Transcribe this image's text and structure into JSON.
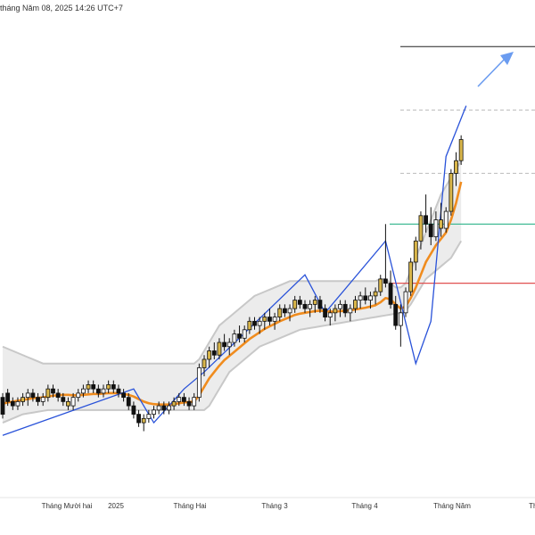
{
  "header": {
    "timestamp": "tháng Năm 08, 2025 14:26 UTC+7"
  },
  "colors": {
    "candle_up": "#ffffff",
    "candle_down": "#111111",
    "candle_up_outline": "#111111",
    "highlight_candle": "#d9b64a",
    "ma_line": "#f08c1e",
    "zigzag": "#2952d9",
    "band_fill": "#ececec",
    "band_edge": "#c8c8c8",
    "resistance_line": "#222222",
    "dashed_lines": "#bbbbbb",
    "green_line": "#2db38a",
    "red_line": "#e05050",
    "arrow": "#6b9cf0"
  },
  "chart_data": {
    "type": "candlestick",
    "title": "",
    "x_labels": [
      "Tháng Mười hai",
      "2025",
      "Tháng Hai",
      "Tháng 3",
      "Tháng 4",
      "Tháng Năm",
      "Thá"
    ],
    "x_label_positions": [
      0.075,
      0.13,
      0.213,
      0.308,
      0.409,
      0.507,
      0.6
    ],
    "y_range": [
      0,
      100
    ],
    "candles": [
      [
        14,
        15,
        9,
        10
      ],
      [
        15,
        16,
        12,
        13
      ],
      [
        13,
        14,
        11,
        12
      ],
      [
        12,
        14,
        11,
        13
      ],
      [
        13,
        15,
        12,
        14
      ],
      [
        14,
        16,
        12,
        15
      ],
      [
        15,
        16,
        13,
        14
      ],
      [
        14,
        15,
        12,
        13
      ],
      [
        13,
        15,
        12,
        14
      ],
      [
        14,
        17,
        13,
        16
      ],
      [
        16,
        17,
        14,
        15
      ],
      [
        15,
        16,
        13,
        14
      ],
      [
        14,
        15,
        12,
        13
      ],
      [
        13,
        14,
        11,
        12
      ],
      [
        12,
        15,
        11,
        14
      ],
      [
        14,
        16,
        13,
        15
      ],
      [
        15,
        17,
        14,
        16
      ],
      [
        16,
        18,
        15,
        17
      ],
      [
        17,
        18,
        15,
        16
      ],
      [
        16,
        17,
        14,
        15
      ],
      [
        15,
        17,
        14,
        16
      ],
      [
        16,
        18,
        15,
        17
      ],
      [
        17,
        18,
        15,
        16
      ],
      [
        16,
        17,
        14,
        15
      ],
      [
        15,
        16,
        13,
        14
      ],
      [
        14,
        15,
        11,
        12
      ],
      [
        12,
        13,
        9,
        10
      ],
      [
        10,
        11,
        7,
        8
      ],
      [
        8,
        10,
        6,
        9
      ],
      [
        9,
        11,
        8,
        10
      ],
      [
        10,
        12,
        9,
        11
      ],
      [
        11,
        13,
        10,
        12
      ],
      [
        12,
        13,
        10,
        11
      ],
      [
        11,
        13,
        10,
        12
      ],
      [
        12,
        14,
        11,
        13
      ],
      [
        13,
        15,
        12,
        14
      ],
      [
        14,
        15,
        12,
        13
      ],
      [
        13,
        14,
        11,
        12
      ],
      [
        12,
        15,
        11,
        14
      ],
      [
        14,
        22,
        13,
        21
      ],
      [
        21,
        24,
        19,
        23
      ],
      [
        23,
        26,
        21,
        25
      ],
      [
        25,
        27,
        23,
        24
      ],
      [
        24,
        28,
        23,
        27
      ],
      [
        27,
        29,
        25,
        26
      ],
      [
        26,
        28,
        24,
        27
      ],
      [
        27,
        30,
        26,
        29
      ],
      [
        29,
        31,
        27,
        28
      ],
      [
        28,
        31,
        27,
        30
      ],
      [
        30,
        33,
        29,
        32
      ],
      [
        32,
        33,
        30,
        31
      ],
      [
        31,
        33,
        29,
        32
      ],
      [
        32,
        34,
        30,
        33
      ],
      [
        33,
        35,
        31,
        32
      ],
      [
        32,
        34,
        30,
        33
      ],
      [
        33,
        36,
        32,
        35
      ],
      [
        35,
        36,
        33,
        34
      ],
      [
        34,
        36,
        32,
        35
      ],
      [
        35,
        38,
        34,
        37
      ],
      [
        37,
        38,
        35,
        36
      ],
      [
        36,
        37,
        34,
        35
      ],
      [
        35,
        37,
        33,
        36
      ],
      [
        36,
        38,
        34,
        37
      ],
      [
        37,
        38,
        34,
        35
      ],
      [
        35,
        36,
        32,
        33
      ],
      [
        33,
        35,
        31,
        34
      ],
      [
        34,
        36,
        32,
        35
      ],
      [
        35,
        37,
        33,
        36
      ],
      [
        36,
        37,
        33,
        34
      ],
      [
        34,
        36,
        32,
        35
      ],
      [
        35,
        38,
        34,
        37
      ],
      [
        37,
        39,
        35,
        38
      ],
      [
        38,
        40,
        36,
        37
      ],
      [
        37,
        39,
        35,
        38
      ],
      [
        38,
        40,
        36,
        39
      ],
      [
        39,
        43,
        38,
        42
      ],
      [
        42,
        55,
        40,
        41
      ],
      [
        41,
        44,
        35,
        36
      ],
      [
        36,
        38,
        30,
        31
      ],
      [
        31,
        36,
        26,
        34
      ],
      [
        34,
        40,
        33,
        39
      ],
      [
        39,
        47,
        38,
        46
      ],
      [
        46,
        52,
        44,
        51
      ],
      [
        51,
        58,
        49,
        57
      ],
      [
        57,
        62,
        53,
        55
      ],
      [
        55,
        59,
        50,
        52
      ],
      [
        52,
        58,
        51,
        56
      ],
      [
        56,
        60,
        52,
        54
      ],
      [
        54,
        59,
        53,
        58
      ],
      [
        58,
        68,
        57,
        67
      ],
      [
        67,
        72,
        64,
        70
      ],
      [
        70,
        76,
        69,
        75
      ]
    ],
    "highlight_candles": [
      4,
      9,
      13,
      17,
      21,
      28,
      34,
      40,
      41,
      43,
      49,
      52,
      55,
      58,
      62,
      66,
      70,
      74,
      75,
      81,
      82,
      83,
      87,
      89,
      90,
      91
    ],
    "ma_values": [
      12.5,
      12.8,
      13.0,
      13.2,
      13.4,
      13.6,
      13.8,
      13.9,
      14.0,
      14.2,
      14.4,
      14.5,
      14.6,
      14.6,
      14.5,
      14.5,
      14.6,
      14.7,
      14.8,
      14.8,
      14.9,
      15.0,
      15.0,
      15.0,
      14.8,
      14.6,
      14.2,
      13.6,
      13.0,
      12.6,
      12.4,
      12.3,
      12.3,
      12.3,
      12.4,
      12.6,
      12.8,
      12.9,
      13.0,
      14.5,
      16.5,
      18.5,
      20.0,
      21.5,
      22.8,
      23.8,
      24.8,
      25.8,
      26.8,
      27.8,
      28.6,
      29.4,
      30.2,
      30.8,
      31.4,
      32.0,
      32.5,
      33.0,
      33.5,
      33.8,
      34.0,
      34.2,
      34.4,
      34.5,
      34.4,
      34.3,
      34.3,
      34.4,
      34.5,
      34.6,
      34.8,
      35.0,
      35.2,
      35.5,
      35.8,
      36.5,
      37.5,
      37.2,
      36.0,
      35.0,
      35.5,
      37.5,
      40.0,
      43.0,
      46.0,
      48.0,
      50.0,
      51.5,
      53.0,
      56.0,
      60.0,
      65.0
    ],
    "band_upper": [
      26,
      25.5,
      25,
      24.5,
      24,
      23.5,
      23,
      22.5,
      22,
      22,
      22,
      22,
      22,
      22,
      22,
      22,
      22,
      22,
      22,
      22,
      22,
      22,
      22,
      22,
      22,
      22,
      22,
      22,
      22,
      22,
      22,
      22,
      22,
      22,
      22,
      22,
      22,
      22,
      22,
      23,
      25,
      27,
      29,
      31,
      32,
      33,
      34,
      35,
      36,
      37,
      38,
      38.5,
      39,
      39.5,
      40,
      40.5,
      41,
      41.5,
      41.5,
      41.5,
      41.5,
      41.5,
      41.5,
      41.5,
      41.5,
      41.5,
      41.5,
      41.5,
      41.5,
      41.5,
      41.5,
      41.5,
      41.5,
      41.5,
      41.5,
      42,
      42,
      41,
      40,
      40,
      41,
      44,
      47,
      50,
      53,
      56,
      59,
      62,
      64,
      66,
      68,
      70
    ],
    "band_lower": [
      8,
      8.5,
      9,
      9.5,
      10,
      10.2,
      10.4,
      10.6,
      10.8,
      11,
      11,
      11,
      11,
      11,
      11,
      11,
      11,
      11,
      11,
      11,
      11,
      11,
      11,
      11,
      11,
      11,
      11,
      11,
      11,
      11,
      11,
      11,
      11,
      11,
      11,
      11,
      11,
      11,
      11,
      11,
      11,
      12,
      14,
      16,
      18,
      20,
      21,
      22,
      23,
      24,
      25,
      26,
      26.5,
      27,
      27.5,
      28,
      28.5,
      29,
      29.5,
      30,
      30.2,
      30.4,
      30.6,
      30.8,
      31,
      31.2,
      31.4,
      31.6,
      31.8,
      32,
      32.2,
      32.4,
      32.6,
      32.8,
      33,
      33.2,
      33.4,
      33.6,
      33.8,
      34,
      34.5,
      36,
      38,
      40,
      42,
      43,
      44,
      45,
      46,
      47,
      49,
      51
    ],
    "zigzag_points": [
      [
        0,
        5
      ],
      [
        26,
        16
      ],
      [
        30,
        8
      ],
      [
        36,
        16
      ],
      [
        40,
        20
      ],
      [
        60,
        43
      ],
      [
        64,
        34
      ],
      [
        76,
        51
      ],
      [
        82,
        22
      ],
      [
        85,
        32
      ],
      [
        88,
        71
      ],
      [
        92,
        83
      ]
    ],
    "lines": {
      "resistance": 97,
      "dashed_upper": 82,
      "dashed_lower": 67,
      "green": 55,
      "red": 41
    }
  }
}
